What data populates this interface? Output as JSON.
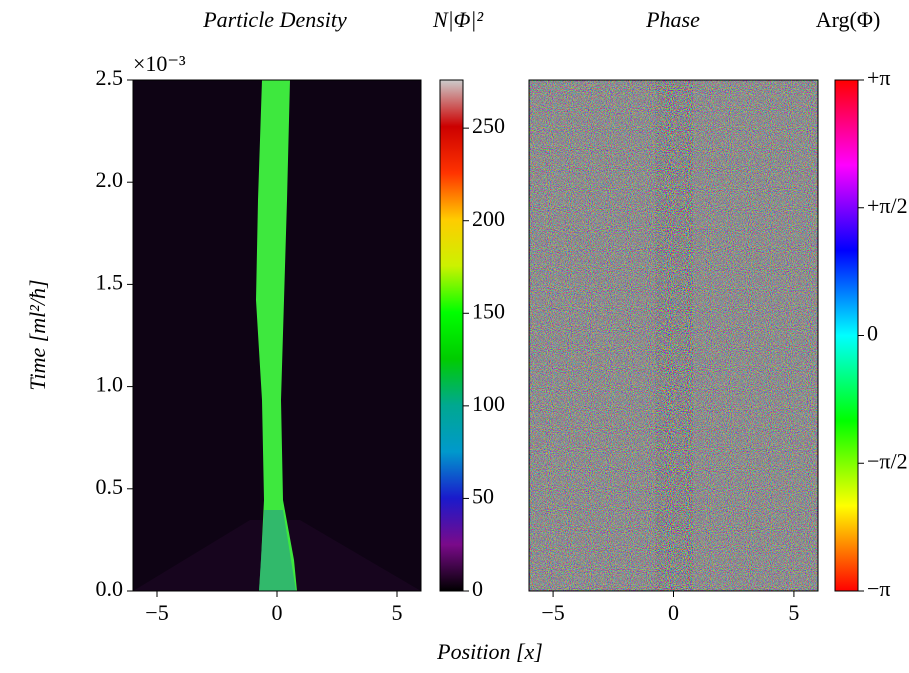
{
  "chart_data": [
    {
      "type": "heatmap",
      "title": "Particle Density",
      "colorbar_label": "N|Φ|²",
      "ylabel": "Time [ml²/ħ]",
      "xlabel": "Position [x]",
      "offset_text": "×10⁻³",
      "xlim": [
        -6,
        6
      ],
      "xticks": [
        {
          "value": -5,
          "label": "−5"
        },
        0,
        5
      ],
      "ylim": [
        0,
        0.0025
      ],
      "yticks": [
        {
          "value": 0,
          "label": "0.0"
        },
        {
          "value": 0.0005,
          "label": "0.5"
        },
        {
          "value": 0.001,
          "label": "1.0"
        },
        {
          "value": 0.0015,
          "label": "1.5"
        },
        {
          "value": 0.002,
          "label": "2.0"
        },
        {
          "value": 0.0025,
          "label": "2.5"
        }
      ],
      "clim": [
        0,
        276
      ],
      "cticks": [
        0,
        50,
        100,
        150,
        200,
        250
      ],
      "colormap": [
        "#000000",
        "#7a0a8a",
        "#1a1acc",
        "#0099cc",
        "#00a890",
        "#00cc00",
        "#00ff00",
        "#ccf200",
        "#ffcc00",
        "#ff3300",
        "#cc0000",
        "#cccccc"
      ]
    },
    {
      "type": "heatmap",
      "title": "Phase",
      "colorbar_label": "Arg(Φ)",
      "xlim": [
        -6,
        6
      ],
      "xticks": [
        {
          "value": -5,
          "label": "−5"
        },
        0,
        5
      ],
      "clim": [
        -3.14159,
        3.14159
      ],
      "cticks": [
        {
          "value": -3.14159,
          "label": "−π"
        },
        {
          "value": -1.5708,
          "label": "−π/2"
        },
        0,
        {
          "value": 1.5708,
          "label": "+π/2"
        },
        {
          "value": 3.14159,
          "label": "+π"
        }
      ],
      "colormap": [
        "#ff0000",
        "#ffff00",
        "#00ff00",
        "#00ffff",
        "#0000ff",
        "#ff00ff",
        "#ff0000"
      ]
    }
  ]
}
